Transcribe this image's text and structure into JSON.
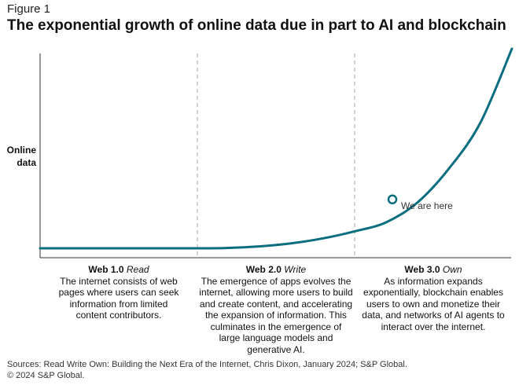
{
  "figure_label": "Figure 1",
  "title": "The exponential growth of online data due in part to AI and blockchain",
  "colors": {
    "curve": "#0a6e80",
    "axis": "#333333",
    "divider": "#aaaaaa"
  },
  "chart_data": {
    "type": "line",
    "title": "The exponential growth of online data due in part to AI and blockchain",
    "ylabel": [
      "Online",
      "data"
    ],
    "grid": false,
    "legend": "none",
    "x_domain": [
      0,
      3
    ],
    "y_domain": [
      0,
      1
    ],
    "series": [
      {
        "x": [
          0.0,
          1.0,
          1.2,
          1.4,
          1.6,
          1.8,
          2.0,
          2.2,
          2.4,
          2.6,
          2.8,
          3.0
        ],
        "y": [
          0.0,
          0.0,
          0.002,
          0.01,
          0.025,
          0.05,
          0.085,
          0.13,
          0.23,
          0.4,
          0.63,
          1.0
        ]
      }
    ],
    "annotation": {
      "x": 2.24,
      "y": 0.245,
      "text": "We are here"
    },
    "eras": [
      {
        "name": "Web 1.0",
        "mode": "Read",
        "description": "The internet consists of web pages where users can seek information from limited content contributors."
      },
      {
        "name": "Web 2.0",
        "mode": "Write",
        "description": "The emergence of apps evolves the internet, allowing more users to build and create content, and accelerating the expansion of information. This culminates in the emergence of large language models and generative AI."
      },
      {
        "name": "Web 3.0",
        "mode": "Own",
        "description": "As information expands exponentially, blockchain enables users to own and monetize their data, and networks of AI agents to interact over the internet."
      }
    ]
  },
  "sources_line1": "Sources: Read Write Own: Building the Next Era of the Internet, Chris Dixon, January 2024; S&P Global.",
  "sources_line2": "© 2024 S&P Global."
}
